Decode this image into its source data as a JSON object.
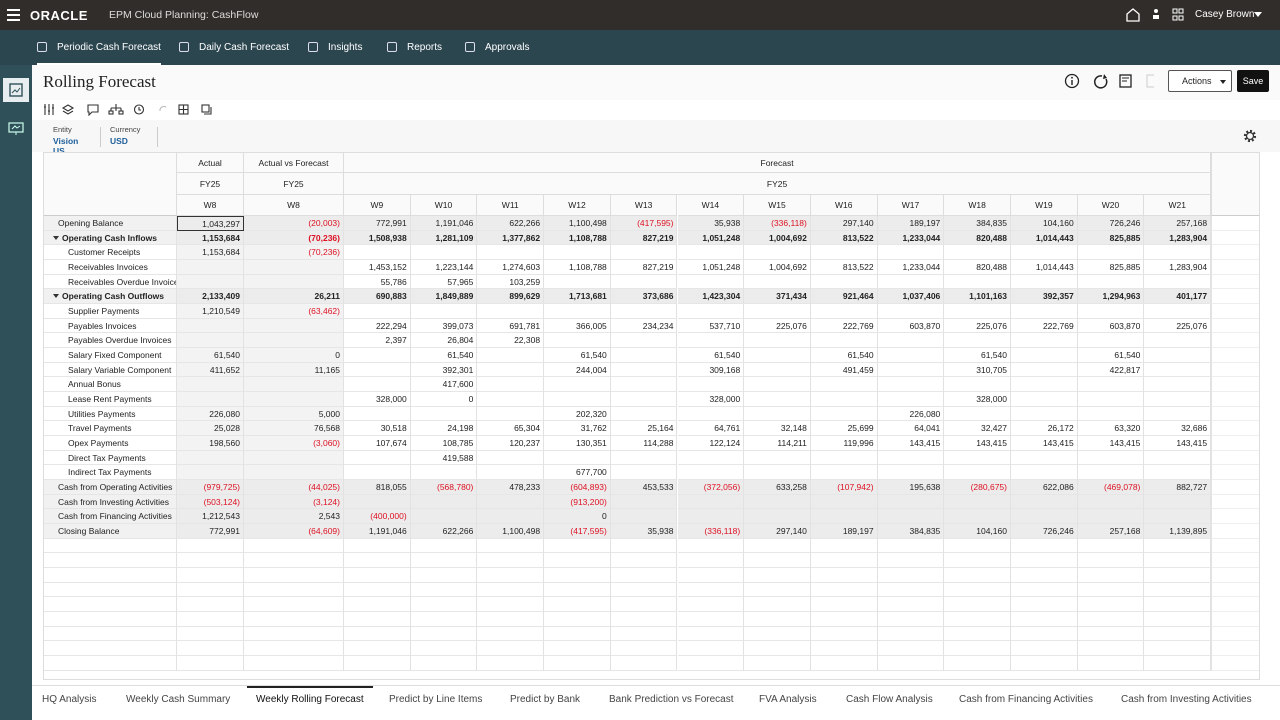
{
  "header": {
    "logo": "ORACLE",
    "app": "EPM Cloud Planning: CashFlow",
    "user": "Casey Brown"
  },
  "nav": [
    "Periodic Cash Forecast",
    "Daily Cash Forecast",
    "Insights",
    "Reports",
    "Approvals"
  ],
  "page": {
    "title": "Rolling Forecast",
    "actions": "Actions",
    "save": "Save"
  },
  "pov": [
    {
      "label": "Entity",
      "value": "Vision US"
    },
    {
      "label": "Currency",
      "value": "USD"
    }
  ],
  "table": {
    "groups": [
      {
        "label": "Actual",
        "year": "FY25",
        "columns": [
          "W8"
        ]
      },
      {
        "label": "Actual vs Forecast",
        "year": "FY25",
        "columns": [
          "W8"
        ]
      },
      {
        "label": "Forecast",
        "year": "FY25",
        "columns": [
          "W9",
          "W10",
          "W11",
          "W12",
          "W13",
          "W14",
          "W15",
          "W16",
          "W17",
          "W18",
          "W19",
          "W20",
          "W21"
        ]
      }
    ],
    "rows": [
      {
        "label": "Opening Balance",
        "kind": "total",
        "values": [
          "1,043,297",
          "(20,003)",
          "772,991",
          "1,191,046",
          "622,266",
          "1,100,498",
          "(417,595)",
          "35,938",
          "(336,118)",
          "297,140",
          "189,197",
          "384,835",
          "104,160",
          "726,246",
          "257,168"
        ]
      },
      {
        "label": "Operating Cash Inflows",
        "kind": "group",
        "values": [
          "1,153,684",
          "(70,236)",
          "1,508,938",
          "1,281,109",
          "1,377,862",
          "1,108,788",
          "827,219",
          "1,051,248",
          "1,004,692",
          "813,522",
          "1,233,044",
          "820,488",
          "1,014,443",
          "825,885",
          "1,283,904"
        ]
      },
      {
        "label": "Customer Receipts",
        "kind": "item",
        "values": [
          "1,153,684",
          "(70,236)",
          null,
          null,
          null,
          null,
          null,
          null,
          null,
          null,
          null,
          null,
          null,
          null,
          null
        ]
      },
      {
        "label": "Receivables Invoices",
        "kind": "item",
        "values": [
          null,
          null,
          "1,453,152",
          "1,223,144",
          "1,274,603",
          "1,108,788",
          "827,219",
          "1,051,248",
          "1,004,692",
          "813,522",
          "1,233,044",
          "820,488",
          "1,014,443",
          "825,885",
          "1,283,904"
        ]
      },
      {
        "label": "Receivables Overdue Invoices",
        "kind": "item",
        "values": [
          null,
          null,
          "55,786",
          "57,965",
          "103,259",
          null,
          null,
          null,
          null,
          null,
          null,
          null,
          null,
          null,
          null
        ]
      },
      {
        "label": "Operating Cash Outflows",
        "kind": "group",
        "values": [
          "2,133,409",
          "26,211",
          "690,883",
          "1,849,889",
          "899,629",
          "1,713,681",
          "373,686",
          "1,423,304",
          "371,434",
          "921,464",
          "1,037,406",
          "1,101,163",
          "392,357",
          "1,294,963",
          "401,177"
        ]
      },
      {
        "label": "Supplier Payments",
        "kind": "item",
        "values": [
          "1,210,549",
          "(63,462)",
          null,
          null,
          null,
          null,
          null,
          null,
          null,
          null,
          null,
          null,
          null,
          null,
          null
        ]
      },
      {
        "label": "Payables Invoices",
        "kind": "item",
        "values": [
          null,
          null,
          "222,294",
          "399,073",
          "691,781",
          "366,005",
          "234,234",
          "537,710",
          "225,076",
          "222,769",
          "603,870",
          "225,076",
          "222,769",
          "603,870",
          "225,076"
        ]
      },
      {
        "label": "Payables Overdue Invoices",
        "kind": "item",
        "values": [
          null,
          null,
          "2,397",
          "26,804",
          "22,308",
          null,
          null,
          null,
          null,
          null,
          null,
          null,
          null,
          null,
          null
        ]
      },
      {
        "label": "Salary Fixed  Component",
        "kind": "item",
        "values": [
          "61,540",
          "0",
          null,
          "61,540",
          null,
          "61,540",
          null,
          "61,540",
          null,
          "61,540",
          null,
          "61,540",
          null,
          "61,540",
          null
        ]
      },
      {
        "label": "Salary Variable Component",
        "kind": "item",
        "values": [
          "411,652",
          "11,165",
          null,
          "392,301",
          null,
          "244,004",
          null,
          "309,168",
          null,
          "491,459",
          null,
          "310,705",
          null,
          "422,817",
          null
        ]
      },
      {
        "label": "Annual Bonus",
        "kind": "item",
        "values": [
          null,
          null,
          null,
          "417,600",
          null,
          null,
          null,
          null,
          null,
          null,
          null,
          null,
          null,
          null,
          null
        ]
      },
      {
        "label": "Lease Rent Payments",
        "kind": "item",
        "values": [
          null,
          null,
          "328,000",
          "0",
          null,
          null,
          null,
          "328,000",
          null,
          null,
          null,
          "328,000",
          null,
          null,
          null
        ]
      },
      {
        "label": "Utilities Payments",
        "kind": "item",
        "values": [
          "226,080",
          "5,000",
          null,
          null,
          null,
          "202,320",
          null,
          null,
          null,
          null,
          "226,080",
          null,
          null,
          null,
          null
        ]
      },
      {
        "label": "Travel Payments",
        "kind": "item",
        "values": [
          "25,028",
          "76,568",
          "30,518",
          "24,198",
          "65,304",
          "31,762",
          "25,164",
          "64,761",
          "32,148",
          "25,699",
          "64,041",
          "32,427",
          "26,172",
          "63,320",
          "32,686"
        ]
      },
      {
        "label": "Opex Payments",
        "kind": "item",
        "values": [
          "198,560",
          "(3,060)",
          "107,674",
          "108,785",
          "120,237",
          "130,351",
          "114,288",
          "122,124",
          "114,211",
          "119,996",
          "143,415",
          "143,415",
          "143,415",
          "143,415",
          "143,415"
        ]
      },
      {
        "label": "Direct Tax Payments",
        "kind": "item",
        "values": [
          null,
          null,
          null,
          "419,588",
          null,
          null,
          null,
          null,
          null,
          null,
          null,
          null,
          null,
          null,
          null
        ]
      },
      {
        "label": "Indirect Tax Payments",
        "kind": "item",
        "values": [
          null,
          null,
          null,
          null,
          null,
          "677,700",
          null,
          null,
          null,
          null,
          null,
          null,
          null,
          null,
          null
        ]
      },
      {
        "label": "Cash from Operating Activities",
        "kind": "total",
        "values": [
          "(979,725)",
          "(44,025)",
          "818,055",
          "(568,780)",
          "478,233",
          "(604,893)",
          "453,533",
          "(372,056)",
          "633,258",
          "(107,942)",
          "195,638",
          "(280,675)",
          "622,086",
          "(469,078)",
          "882,727"
        ]
      },
      {
        "label": "Cash from Investing Activities",
        "kind": "total",
        "values": [
          "(503,124)",
          "(3,124)",
          null,
          null,
          null,
          "(913,200)",
          null,
          null,
          null,
          null,
          null,
          null,
          null,
          null,
          null
        ]
      },
      {
        "label": "Cash from Financing Activities",
        "kind": "total",
        "values": [
          "1,212,543",
          "2,543",
          "(400,000)",
          null,
          null,
          "0",
          null,
          null,
          null,
          null,
          null,
          null,
          null,
          null,
          null
        ]
      },
      {
        "label": "Closing Balance",
        "kind": "total",
        "values": [
          "772,991",
          "(64,609)",
          "1,191,046",
          "622,266",
          "1,100,498",
          "(417,595)",
          "35,938",
          "(336,118)",
          "297,140",
          "189,197",
          "384,835",
          "104,160",
          "726,246",
          "257,168",
          "1,139,895"
        ]
      }
    ]
  },
  "tabs": {
    "items": [
      "HQ Analysis",
      "Weekly Cash Summary",
      "Weekly Rolling Forecast",
      "Predict by Line Items",
      "Predict by Bank",
      "Bank Prediction vs Forecast",
      "FVA Analysis",
      "Cash Flow Analysis",
      "Cash from Financing Activities",
      "Cash from Investing Activities"
    ],
    "active": 2
  }
}
